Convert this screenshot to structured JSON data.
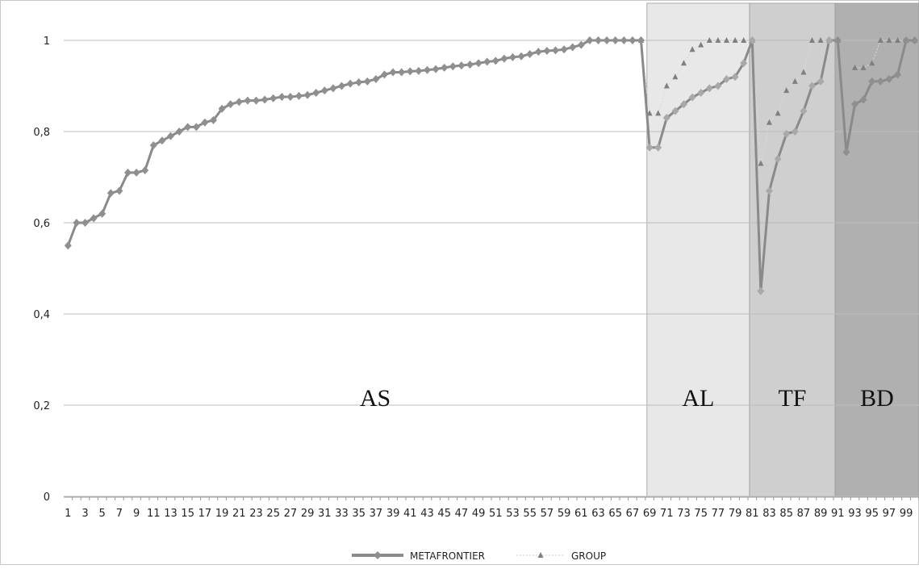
{
  "chart_data": {
    "type": "line",
    "title": "",
    "xlabel": "",
    "ylabel": "",
    "ylim": [
      0,
      1.05
    ],
    "yticks": [
      "0",
      "0,2",
      "0,4",
      "0,6",
      "0,8",
      "1"
    ],
    "ytick_values": [
      0,
      0.2,
      0.4,
      0.6,
      0.8,
      1
    ],
    "x": [
      1,
      2,
      3,
      4,
      5,
      6,
      7,
      8,
      9,
      10,
      11,
      12,
      13,
      14,
      15,
      16,
      17,
      18,
      19,
      20,
      21,
      22,
      23,
      24,
      25,
      26,
      27,
      28,
      29,
      30,
      31,
      32,
      33,
      34,
      35,
      36,
      37,
      38,
      39,
      40,
      41,
      42,
      43,
      44,
      45,
      46,
      47,
      48,
      49,
      50,
      51,
      52,
      53,
      54,
      55,
      56,
      57,
      58,
      59,
      60,
      61,
      62,
      63,
      64,
      65,
      66,
      67,
      68,
      69,
      70,
      71,
      72,
      73,
      74,
      75,
      76,
      77,
      78,
      79,
      80,
      81,
      82,
      83,
      84,
      85,
      86,
      87,
      88,
      89,
      90,
      91,
      92,
      93,
      94,
      95,
      96,
      97,
      98,
      99,
      100
    ],
    "xtick_labels": [
      "1",
      "3",
      "5",
      "7",
      "9",
      "11",
      "13",
      "15",
      "17",
      "19",
      "21",
      "23",
      "25",
      "27",
      "29",
      "31",
      "33",
      "35",
      "37",
      "39",
      "41",
      "43",
      "45",
      "47",
      "49",
      "51",
      "53",
      "55",
      "57",
      "59",
      "61",
      "63",
      "65",
      "67",
      "69",
      "71",
      "73",
      "75",
      "77",
      "79",
      "81",
      "83",
      "85",
      "87",
      "89",
      "91",
      "93",
      "95",
      "97",
      "99"
    ],
    "regions": [
      {
        "label": "AS",
        "from": 1,
        "to": 68,
        "shade": "#ffffff"
      },
      {
        "label": "AL",
        "from": 69,
        "to": 80,
        "shade": "#e8e8e8"
      },
      {
        "label": "TF",
        "from": 81,
        "to": 90,
        "shade": "#cfcfcf"
      },
      {
        "label": "BD",
        "from": 91,
        "to": 100,
        "shade": "#b0b0b0"
      }
    ],
    "series": [
      {
        "name": "METAFRONTIER",
        "color": "#8a8a8a",
        "style": "line-diamond",
        "values": [
          0.55,
          0.6,
          0.6,
          0.61,
          0.62,
          0.665,
          0.67,
          0.71,
          0.71,
          0.715,
          0.77,
          0.78,
          0.79,
          0.8,
          0.81,
          0.81,
          0.82,
          0.825,
          0.85,
          0.86,
          0.865,
          0.868,
          0.868,
          0.87,
          0.873,
          0.876,
          0.876,
          0.878,
          0.88,
          0.885,
          0.89,
          0.895,
          0.9,
          0.905,
          0.908,
          0.91,
          0.915,
          0.925,
          0.93,
          0.93,
          0.932,
          0.933,
          0.935,
          0.937,
          0.94,
          0.943,
          0.945,
          0.947,
          0.95,
          0.953,
          0.955,
          0.96,
          0.963,
          0.965,
          0.97,
          0.975,
          0.977,
          0.978,
          0.98,
          0.985,
          0.99,
          1.0,
          1.0,
          1.0,
          1.0,
          1.0,
          1.0,
          1.0,
          0.765,
          0.765,
          0.83,
          0.845,
          0.86,
          0.875,
          0.885,
          0.895,
          0.9,
          0.915,
          0.92,
          0.95,
          1.0,
          0.45,
          0.67,
          0.74,
          0.795,
          0.8,
          0.845,
          0.9,
          0.91,
          1.0,
          1.0,
          0.755,
          0.86,
          0.87,
          0.91,
          0.91,
          0.915,
          0.925,
          1.0,
          1.0
        ]
      },
      {
        "name": "GROUP",
        "color": "#9a9a9a",
        "style": "dashed-triangle",
        "values": [
          null,
          null,
          null,
          null,
          null,
          null,
          null,
          null,
          null,
          null,
          null,
          null,
          null,
          null,
          null,
          null,
          null,
          null,
          null,
          null,
          null,
          null,
          null,
          null,
          null,
          null,
          null,
          null,
          null,
          null,
          null,
          null,
          null,
          null,
          null,
          null,
          null,
          null,
          null,
          null,
          null,
          null,
          null,
          null,
          null,
          null,
          null,
          null,
          null,
          null,
          null,
          null,
          null,
          null,
          null,
          null,
          null,
          null,
          null,
          null,
          null,
          null,
          null,
          null,
          null,
          null,
          null,
          1.0,
          0.84,
          0.84,
          0.9,
          0.92,
          0.95,
          0.98,
          0.99,
          1.0,
          1.0,
          1.0,
          1.0,
          1.0,
          1.0,
          0.73,
          0.82,
          0.84,
          0.89,
          0.91,
          0.93,
          1.0,
          1.0,
          1.0,
          1.0,
          null,
          0.94,
          0.94,
          0.95,
          1.0,
          1.0,
          1.0,
          1.0,
          1.0
        ]
      }
    ],
    "legend": {
      "position": "bottom"
    },
    "grid": true
  }
}
